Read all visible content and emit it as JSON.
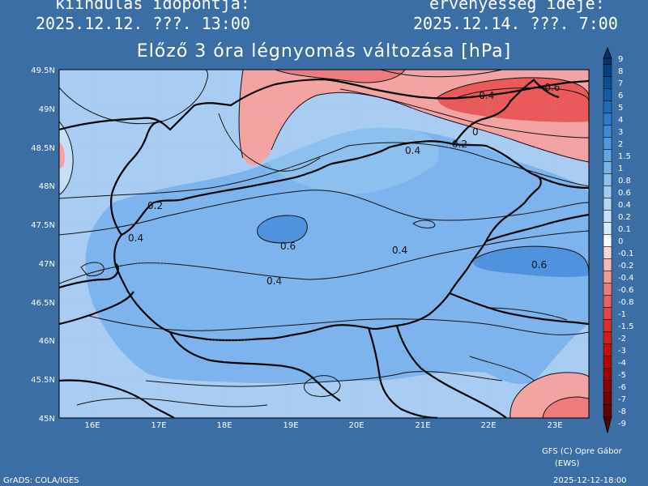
{
  "header": {
    "init_label": "kiindulás időpontja:",
    "init_time": "2025.12.12. ???. 13:00",
    "valid_label": "érvényesség ideje:",
    "valid_time": "2025.12.14. ???. 7:00"
  },
  "map": {
    "title": "Előző 3 óra légnyomás változása [hPa]",
    "lat_ticks": [
      "49.5N",
      "49N",
      "48.5N",
      "48N",
      "47.5N",
      "47N",
      "46.5N",
      "46N",
      "45.5N",
      "45N"
    ],
    "lon_ticks": [
      "16E",
      "17E",
      "18E",
      "19E",
      "20E",
      "21E",
      "22E",
      "23E"
    ],
    "contour_labels": [
      "-0.6",
      "-0.4",
      "0",
      "0.2",
      "0.4",
      "0.2",
      "0.4",
      "0.6",
      "0.4",
      "0.6",
      "0.4"
    ]
  },
  "colorbar": {
    "labels": [
      "9",
      "8",
      "7",
      "6",
      "5",
      "4",
      "3",
      "2",
      "1.5",
      "1",
      "0.8",
      "0.6",
      "0.4",
      "0.2",
      "0.1",
      "0",
      "-0.1",
      "-0.2",
      "-0.4",
      "-0.6",
      "-0.8",
      "-1",
      "-1.5",
      "-2",
      "-3",
      "-4",
      "-5",
      "-6",
      "-7",
      "-8",
      "-9"
    ],
    "colors": [
      "#08306b",
      "#08407f",
      "#0a4f94",
      "#0c5ea8",
      "#1a6dba",
      "#2b7ccb",
      "#3d8bd7",
      "#5099df",
      "#63a6e5",
      "#78b3ea",
      "#8cc0ee",
      "#a0ccf1",
      "#b3d7f4",
      "#c6e1f7",
      "#d8ebfa",
      "#ffffff",
      "#fbd4d4",
      "#f8b8b8",
      "#f49a9a",
      "#ef7c7c",
      "#ea5f5f",
      "#e44545",
      "#dc2e2e",
      "#d21d1d",
      "#c40f0f",
      "#b30505",
      "#a00202",
      "#8c0000",
      "#780000",
      "#650000",
      "#550000"
    ]
  },
  "footer": {
    "credit": "GFS (C) Opre Gábor",
    "credit2": "(EWS)",
    "grads": "GrADS: COLA/IGES",
    "timestamp": "2025-12-12-18:00"
  },
  "colors": {
    "background": "#3a6ea5",
    "light_blue": "#a9cdf2",
    "mid_blue": "#7eb4ee",
    "deep_blue": "#4f93df",
    "pink": "#f4a3a3",
    "red": "#ea5a5a"
  }
}
